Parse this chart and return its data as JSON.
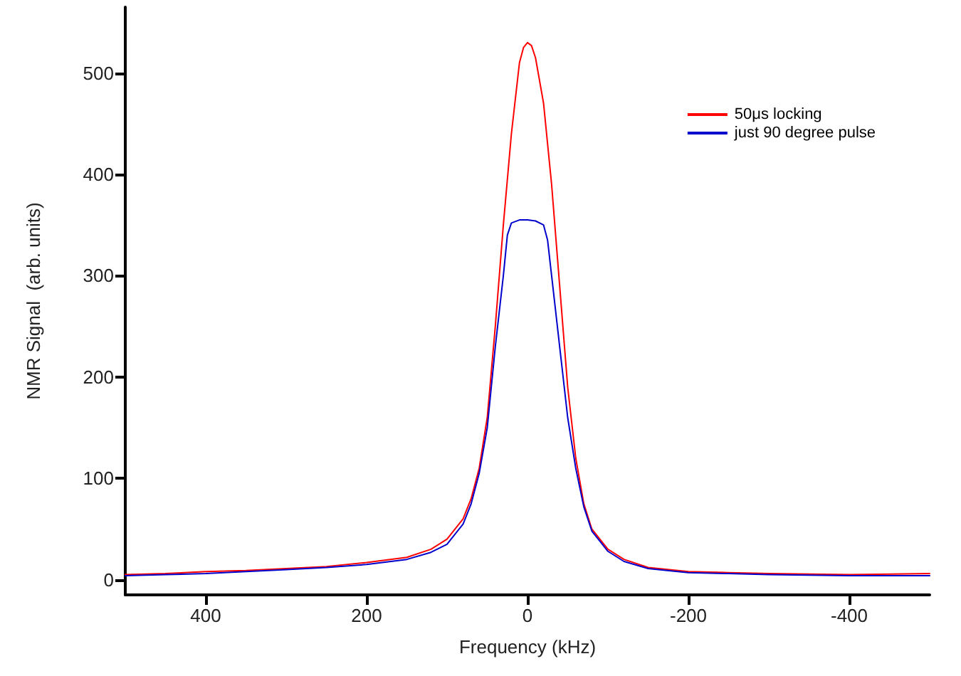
{
  "chart_data": {
    "type": "line",
    "xlabel": "Frequency (kHz)",
    "ylabel": "NMR Signal  (arb. units)",
    "xlim": [
      500,
      -500
    ],
    "xticks": [
      400,
      200,
      0,
      -200,
      -400
    ],
    "ylim": [
      -15,
      565
    ],
    "yticks": [
      0,
      100,
      200,
      300,
      400,
      500
    ],
    "grid": false,
    "legend": "top right",
    "marker": "none",
    "line_style": "solid",
    "series": [
      {
        "name": "50μs locking",
        "color": "#ff0000",
        "x": [
          500,
          450,
          400,
          350,
          300,
          250,
          200,
          150,
          120,
          100,
          80,
          70,
          60,
          50,
          40,
          30,
          20,
          10,
          5,
          0,
          -5,
          -10,
          -20,
          -30,
          -40,
          -50,
          -60,
          -70,
          -80,
          -100,
          -120,
          -150,
          -200,
          -250,
          -300,
          -400,
          -500
        ],
        "values": [
          5,
          6,
          8,
          9,
          11,
          13,
          17,
          22,
          30,
          40,
          60,
          80,
          110,
          160,
          250,
          350,
          440,
          510,
          525,
          530,
          527,
          515,
          470,
          390,
          290,
          190,
          120,
          75,
          50,
          30,
          20,
          12,
          8,
          7,
          6,
          5,
          6
        ]
      },
      {
        "name": "just 90 degree pulse",
        "color": "#0000cc",
        "x": [
          500,
          450,
          400,
          350,
          300,
          250,
          200,
          150,
          120,
          100,
          80,
          70,
          60,
          50,
          40,
          30,
          25,
          20,
          10,
          0,
          -10,
          -20,
          -25,
          -30,
          -40,
          -50,
          -60,
          -70,
          -80,
          -100,
          -120,
          -150,
          -200,
          -250,
          -300,
          -400,
          -500
        ],
        "values": [
          4,
          5,
          6,
          8,
          10,
          12,
          15,
          20,
          27,
          35,
          55,
          75,
          105,
          150,
          230,
          300,
          340,
          352,
          355,
          355,
          354,
          350,
          335,
          300,
          230,
          160,
          110,
          72,
          48,
          28,
          18,
          11,
          7,
          6,
          5,
          4,
          4
        ]
      }
    ]
  }
}
